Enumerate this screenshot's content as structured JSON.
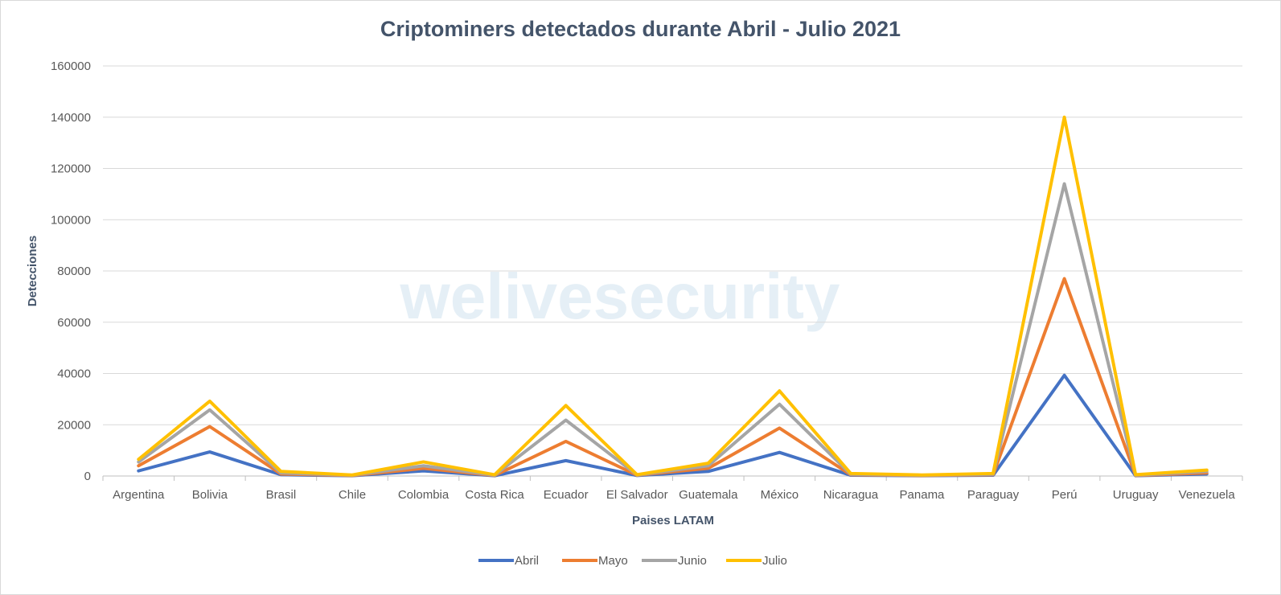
{
  "chart_data": {
    "type": "line",
    "title": "Criptominers detectados durante Abril - Julio 2021",
    "xlabel": "Paises LATAM",
    "ylabel": "Detecciones",
    "ylim": [
      0,
      160000
    ],
    "yticks": [
      0,
      20000,
      40000,
      60000,
      80000,
      100000,
      120000,
      140000,
      160000
    ],
    "grid": true,
    "legend": "bottom",
    "watermark": "welivesecurity",
    "categories": [
      "Argentina",
      "Bolivia",
      "Brasil",
      "Chile",
      "Colombia",
      "Costa Rica",
      "Ecuador",
      "El Salvador",
      "Guatemala",
      "México",
      "Nicaragua",
      "Panama",
      "Paraguay",
      "Perú",
      "Uruguay",
      "Venezuela"
    ],
    "series": [
      {
        "name": "Abril",
        "color": "#4472c4",
        "values": [
          2000,
          9400,
          500,
          100,
          2000,
          100,
          6000,
          200,
          1800,
          9200,
          300,
          100,
          300,
          39300,
          100,
          800
        ]
      },
      {
        "name": "Mayo",
        "color": "#ed7d31",
        "values": [
          4000,
          19300,
          800,
          200,
          3000,
          200,
          13500,
          300,
          3000,
          18700,
          500,
          200,
          500,
          77000,
          200,
          1200
        ]
      },
      {
        "name": "Junio",
        "color": "#a5a5a5",
        "values": [
          5500,
          25800,
          1200,
          300,
          4000,
          300,
          21800,
          400,
          4000,
          28000,
          700,
          300,
          700,
          114000,
          300,
          1800
        ]
      },
      {
        "name": "Julio",
        "color": "#ffc000",
        "values": [
          6500,
          29200,
          1800,
          400,
          5500,
          500,
          27500,
          500,
          5000,
          33200,
          1000,
          400,
          1000,
          140000,
          500,
          2300
        ]
      }
    ]
  }
}
